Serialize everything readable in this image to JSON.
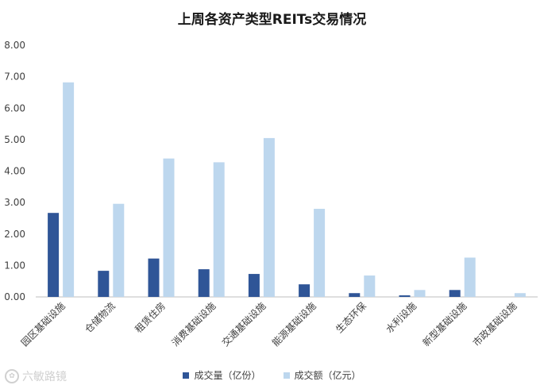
{
  "chart_data": {
    "type": "bar",
    "title": "上周各资产类型REITs交易情况",
    "categories": [
      "园区基础设施",
      "仓储物流",
      "租赁住房",
      "消费基础设施",
      "交通基础设施",
      "能源基础设施",
      "生态环保",
      "水利设施",
      "新型基础设施",
      "市政基础设施"
    ],
    "series": [
      {
        "name": "成交量（亿份）",
        "color": "#2f5597",
        "values": [
          2.67,
          0.83,
          1.22,
          0.88,
          0.73,
          0.4,
          0.12,
          0.05,
          0.22,
          0.0
        ]
      },
      {
        "name": "成交额（亿元）",
        "color": "#bdd7ee",
        "values": [
          6.82,
          2.96,
          4.4,
          4.28,
          5.05,
          2.8,
          0.68,
          0.22,
          1.25,
          0.12
        ]
      }
    ],
    "ylim": [
      0,
      8
    ],
    "yticks": [
      "0.00",
      "1.00",
      "2.00",
      "3.00",
      "4.00",
      "5.00",
      "6.00",
      "7.00",
      "8.00"
    ],
    "xlabel": "",
    "ylabel": "",
    "grid": false,
    "legend_position": "bottom"
  },
  "watermark": {
    "text": "六敏路镜"
  }
}
